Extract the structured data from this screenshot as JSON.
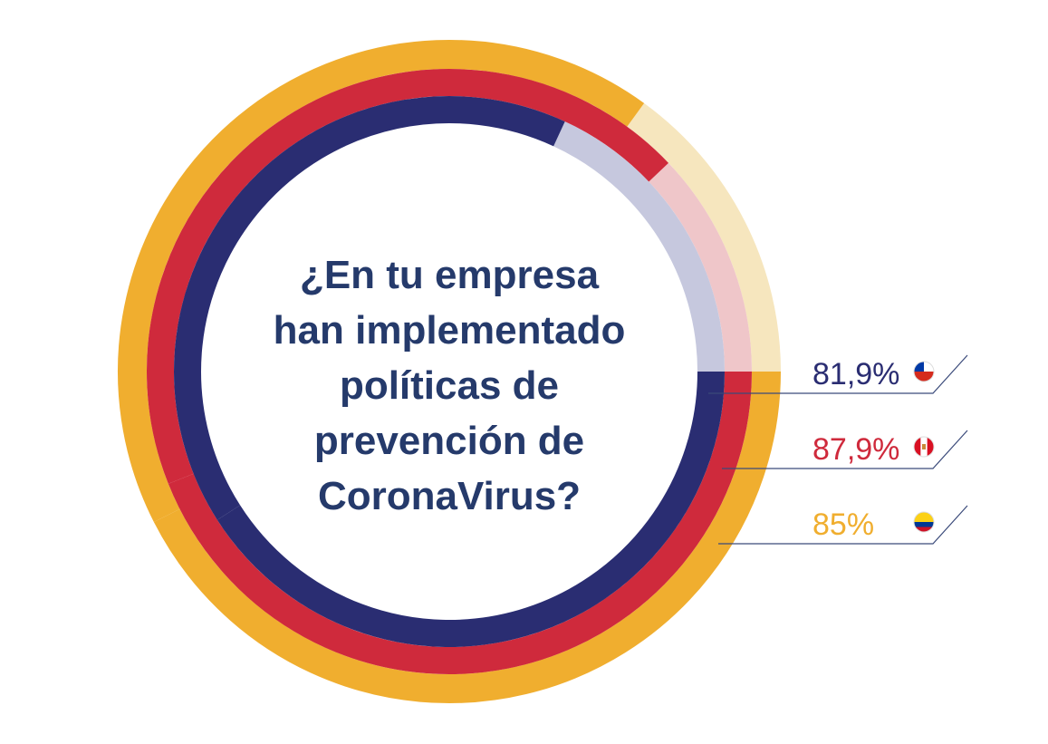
{
  "chart_data": {
    "type": "radial-bar",
    "title_lines": [
      "¿En tu empresa",
      "han implementado",
      "políticas de",
      "prevención de",
      "CoronaVirus?"
    ],
    "series": [
      {
        "value": 85.0,
        "label": "85%",
        "flag": "colombia-flag",
        "color": "#f0ae2f",
        "remainder_color": "#f6e6be"
      },
      {
        "value": 87.9,
        "label": "87,9%",
        "flag": "peru-flag",
        "color": "#cf2a3c",
        "remainder_color": "#efc6c9"
      },
      {
        "value": 81.9,
        "label": "81,9%",
        "flag": "chile-flag",
        "color": "#2a2d72",
        "remainder_color": "#c6c8de"
      }
    ],
    "max": 100
  },
  "colors": {
    "title": "#253a6b",
    "leader_line": "#3a4a7a"
  }
}
